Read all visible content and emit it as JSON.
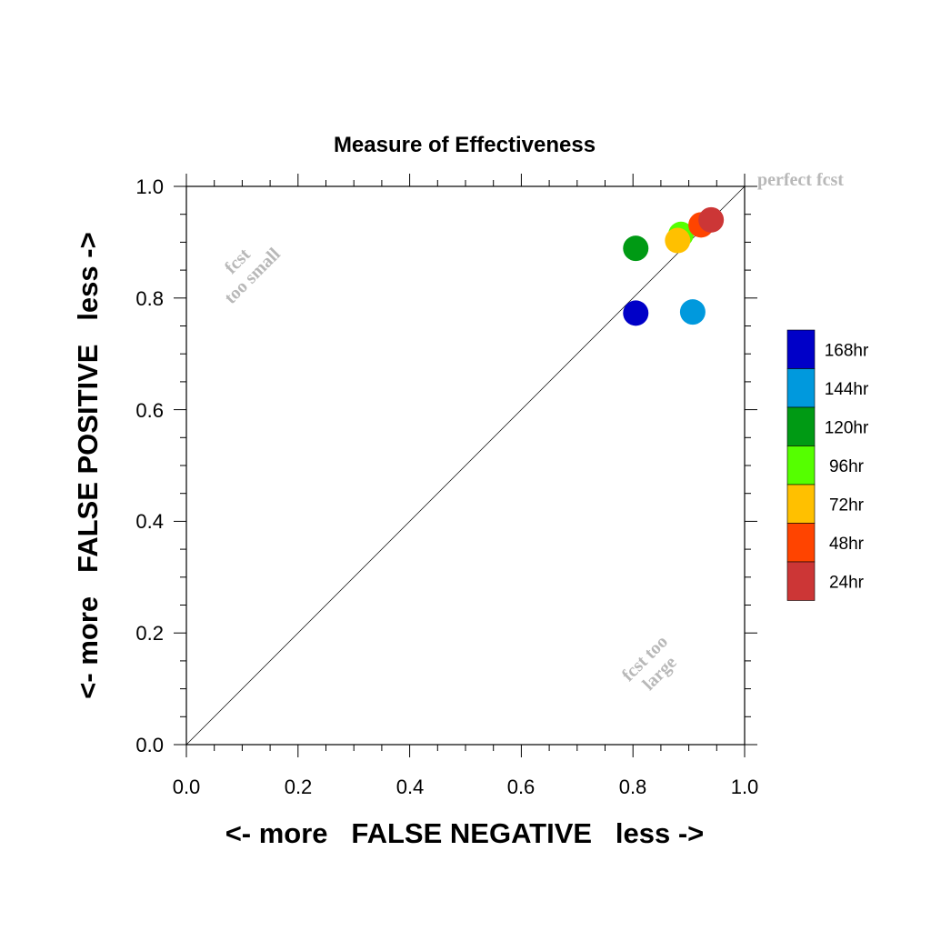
{
  "chart_data": {
    "type": "scatter",
    "title": "Measure of Effectiveness",
    "xlabel": "<- more   FALSE NEGATIVE   less ->",
    "ylabel": "<- more   FALSE POSITIVE   less ->",
    "xlim": [
      0,
      1
    ],
    "ylim": [
      0,
      1
    ],
    "x_ticks": [
      "0.0",
      "0.2",
      "0.4",
      "0.6",
      "0.8",
      "1.0"
    ],
    "y_ticks": [
      "0.0",
      "0.2",
      "0.4",
      "0.6",
      "0.8",
      "1.0"
    ],
    "grid": false,
    "diagonal_line": true,
    "legend_position": "right",
    "annotations": {
      "perfect": "perfect fcst",
      "too_small_line1": "fcst",
      "too_small_line2": "too small",
      "too_large_line1": "fcst too",
      "too_large_line2": "large"
    },
    "series": [
      {
        "name": "168hr",
        "color": "#0000c8",
        "points": [
          {
            "x": 0.805,
            "y": 0.773
          }
        ]
      },
      {
        "name": "144hr",
        "color": "#0099dd",
        "points": [
          {
            "x": 0.907,
            "y": 0.775
          }
        ]
      },
      {
        "name": "120hr",
        "color": "#009a14",
        "points": [
          {
            "x": 0.805,
            "y": 0.889
          }
        ]
      },
      {
        "name": "96hr",
        "color": "#55ff00",
        "points": [
          {
            "x": 0.886,
            "y": 0.914
          }
        ]
      },
      {
        "name": "72hr",
        "color": "#ffc000",
        "points": [
          {
            "x": 0.88,
            "y": 0.903
          }
        ]
      },
      {
        "name": "48hr",
        "color": "#ff4400",
        "points": [
          {
            "x": 0.922,
            "y": 0.931
          }
        ]
      },
      {
        "name": "24hr",
        "color": "#cc3636",
        "points": [
          {
            "x": 0.94,
            "y": 0.94
          }
        ]
      }
    ]
  }
}
